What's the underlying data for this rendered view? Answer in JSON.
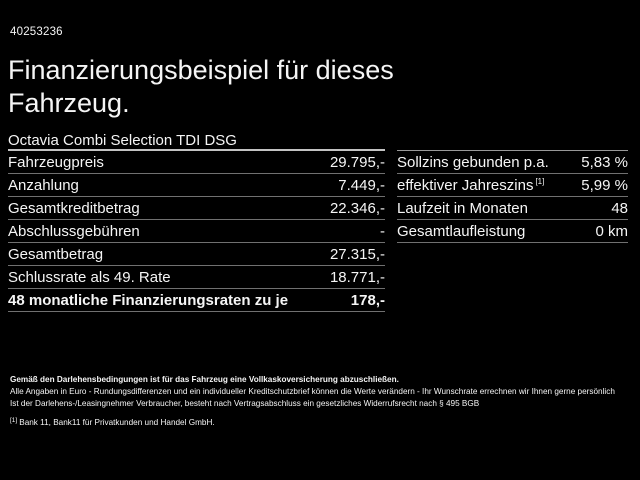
{
  "header": {
    "vehicle_id": "40253236",
    "title": "Finanzierungsbeispiel für dieses Fahrzeug."
  },
  "finance_table": {
    "header": "Octavia Combi Selection TDI DSG",
    "rows": [
      {
        "label": "Fahrzeugpreis",
        "value": "29.795,-"
      },
      {
        "label": "Anzahlung",
        "value": "7.449,-"
      },
      {
        "label": "Gesamtkreditbetrag",
        "value": "22.346,-"
      },
      {
        "label": "Abschlussgebühren",
        "value": "-"
      },
      {
        "label": "Gesamtbetrag",
        "value": "27.315,-"
      },
      {
        "label": "Schlussrate als 49. Rate",
        "value": "18.771,-"
      },
      {
        "label": "48 monatliche Finanzierungsraten zu je",
        "value": "178,-"
      }
    ]
  },
  "conditions_table": {
    "rows": [
      {
        "label": "Sollzins gebunden p.a.",
        "value": "5,83 %"
      },
      {
        "label": "effektiver Jahreszins",
        "sup": "[1]",
        "value": "5,99 %"
      },
      {
        "label": "Laufzeit in Monaten",
        "value": "48"
      },
      {
        "label": "Gesamtlaufleistung",
        "value": "0 km"
      }
    ]
  },
  "footer": {
    "insurance_note": "Gemäß den Darlehensbedingungen ist für das Fahrzeug eine Vollkaskoversicherung abzuschließen.",
    "disclaimer_line_1": "Alle Angaben in Euro - Rundungsdifferenzen und ein individueller Kreditschutzbrief können die Werte verändern - Ihr Wunschrate errechnen wir Ihnen gerne persönlich",
    "disclaimer_line_2": "Ist der Darlehens-/Leasingnehmer Verbraucher, besteht nach Vertragsabschluss ein gesetzliches Widerrufsrecht nach § 495 BGB",
    "footnote_marker": "[1]",
    "footnote_text": "Bank 11, Bank11 für Privatkunden und Handel GmbH."
  },
  "colors": {
    "background": "#000000",
    "text": "#f5f5f5",
    "divider": "#707070",
    "divider_strong": "#c3c3c3"
  }
}
